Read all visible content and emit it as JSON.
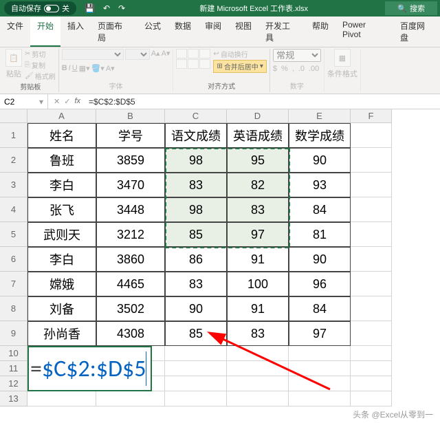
{
  "titlebar": {
    "autosave_label": "自动保存",
    "toggle_state": "关",
    "filename": "新建 Microsoft Excel 工作表.xlsx",
    "search_label": "搜索"
  },
  "tabs": {
    "file": "文件",
    "home": "开始",
    "insert": "插入",
    "layout": "页面布局",
    "formulas": "公式",
    "data": "数据",
    "review": "审阅",
    "view": "视图",
    "developer": "开发工具",
    "help": "帮助",
    "powerpivot": "Power Pivot",
    "baidu": "百度网盘",
    "active": "home"
  },
  "ribbon": {
    "clipboard": {
      "label": "剪贴板",
      "paste": "粘贴",
      "cut": "剪切",
      "copy": "复制",
      "format_painter": "格式刷"
    },
    "font": {
      "label": "字体",
      "bold": "B",
      "italic": "I",
      "underline": "U"
    },
    "alignment": {
      "label": "对齐方式",
      "wrap": "自动换行",
      "merge": "合并后居中"
    },
    "number": {
      "label": "数字",
      "general": "常规"
    },
    "styles": {
      "cond_format": "条件格式"
    }
  },
  "formula_bar": {
    "name_box": "C2",
    "formula": "=$C$2:$D$5"
  },
  "sheet": {
    "col_widths": {
      "A": 100,
      "B": 100,
      "C": 90,
      "D": 90,
      "E": 90,
      "F": 60
    },
    "row_heights": {
      "head": 20,
      "data": 36,
      "small": 22
    },
    "columns": [
      "A",
      "B",
      "C",
      "D",
      "E",
      "F"
    ],
    "headers": [
      "姓名",
      "学号",
      "语文成绩",
      "英语成绩",
      "数学成绩"
    ],
    "rows": [
      [
        "鲁班",
        "3859",
        "98",
        "95",
        "90"
      ],
      [
        "李白",
        "3470",
        "83",
        "82",
        "93"
      ],
      [
        "张飞",
        "3448",
        "98",
        "83",
        "84"
      ],
      [
        "武则天",
        "3212",
        "85",
        "97",
        "81"
      ],
      [
        "李白",
        "3860",
        "86",
        "91",
        "90"
      ],
      [
        "嫦娥",
        "4465",
        "83",
        "100",
        "96"
      ],
      [
        "刘备",
        "3502",
        "90",
        "91",
        "84"
      ],
      [
        "孙尚香",
        "4308",
        "85",
        "83",
        "97"
      ]
    ],
    "selection": {
      "c1": "C",
      "r1": 2,
      "c2": "D",
      "r2": 5
    },
    "formula_display": "$C$2:$D$5",
    "formula_cell_row": 11
  },
  "colors": {
    "excel_green": "#217346",
    "selection_fill": "#e8f0e6",
    "link_blue": "#0563c1",
    "grid_line": "#d4d4d4",
    "header_bg": "#f0f0f0",
    "arrow_red": "#ff0000"
  },
  "watermark": "头条 @Excel从零到一"
}
